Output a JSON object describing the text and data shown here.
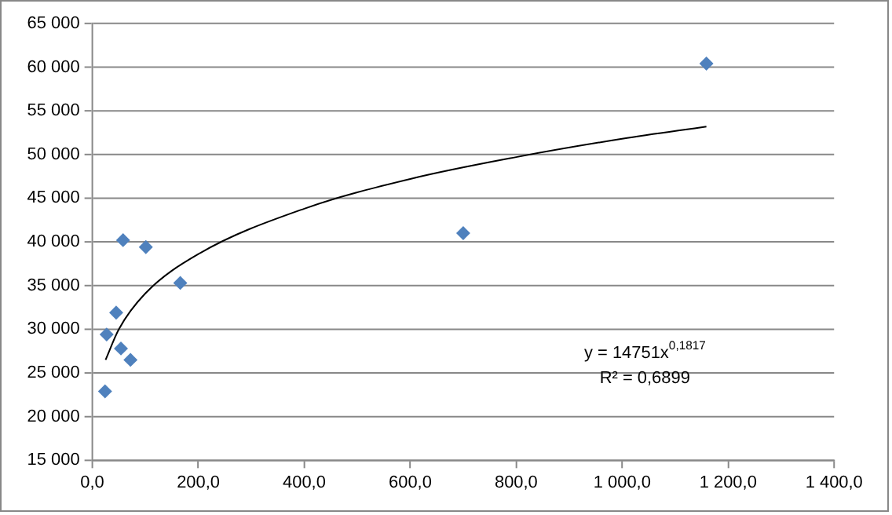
{
  "chart_data": {
    "type": "scatter",
    "series": [
      {
        "color": "#4f81bd",
        "marker": "diamond",
        "x": [
          24,
          27,
          45,
          58,
          54,
          72,
          101,
          166,
          700,
          1159
        ],
        "values": [
          22900,
          29400,
          31900,
          40200,
          27800,
          26500,
          39400,
          35300,
          41000,
          60400
        ]
      },
      {
        "type": "line",
        "color": "#000000",
        "marker": "none",
        "x": [
          25,
          50,
          100,
          200,
          400,
          600,
          800,
          1000,
          1159
        ],
        "values": [
          26500,
          30000,
          34100,
          38600,
          43800,
          47200,
          49700,
          51800,
          53200
        ]
      }
    ],
    "xlim": [
      0,
      1400
    ],
    "xticks": [
      {
        "value": 0,
        "label": "0,0"
      },
      {
        "value": 200,
        "label": "200,0"
      },
      {
        "value": 400,
        "label": "400,0"
      },
      {
        "value": 600,
        "label": "600,0"
      },
      {
        "value": 800,
        "label": "800,0"
      },
      {
        "value": 1000,
        "label": "1 000,0"
      },
      {
        "value": 1200,
        "label": "1 200,0"
      },
      {
        "value": 1400,
        "label": "1 400,0"
      }
    ],
    "ylim": [
      15000,
      65000
    ],
    "yticks": [
      {
        "value": 15000,
        "label": "15 000"
      },
      {
        "value": 20000,
        "label": "20 000"
      },
      {
        "value": 25000,
        "label": "25 000"
      },
      {
        "value": 30000,
        "label": "30 000"
      },
      {
        "value": 35000,
        "label": "35 000"
      },
      {
        "value": 40000,
        "label": "40 000"
      },
      {
        "value": 45000,
        "label": "45 000"
      },
      {
        "value": 50000,
        "label": "50 000"
      },
      {
        "value": 55000,
        "label": "55 000"
      },
      {
        "value": 60000,
        "label": "60 000"
      },
      {
        "value": 65000,
        "label": "65 000"
      }
    ],
    "grid": "y",
    "legend": false,
    "annotations": [
      "y = 14751x$^{0,1817}$",
      "R² = 0,6899"
    ]
  }
}
